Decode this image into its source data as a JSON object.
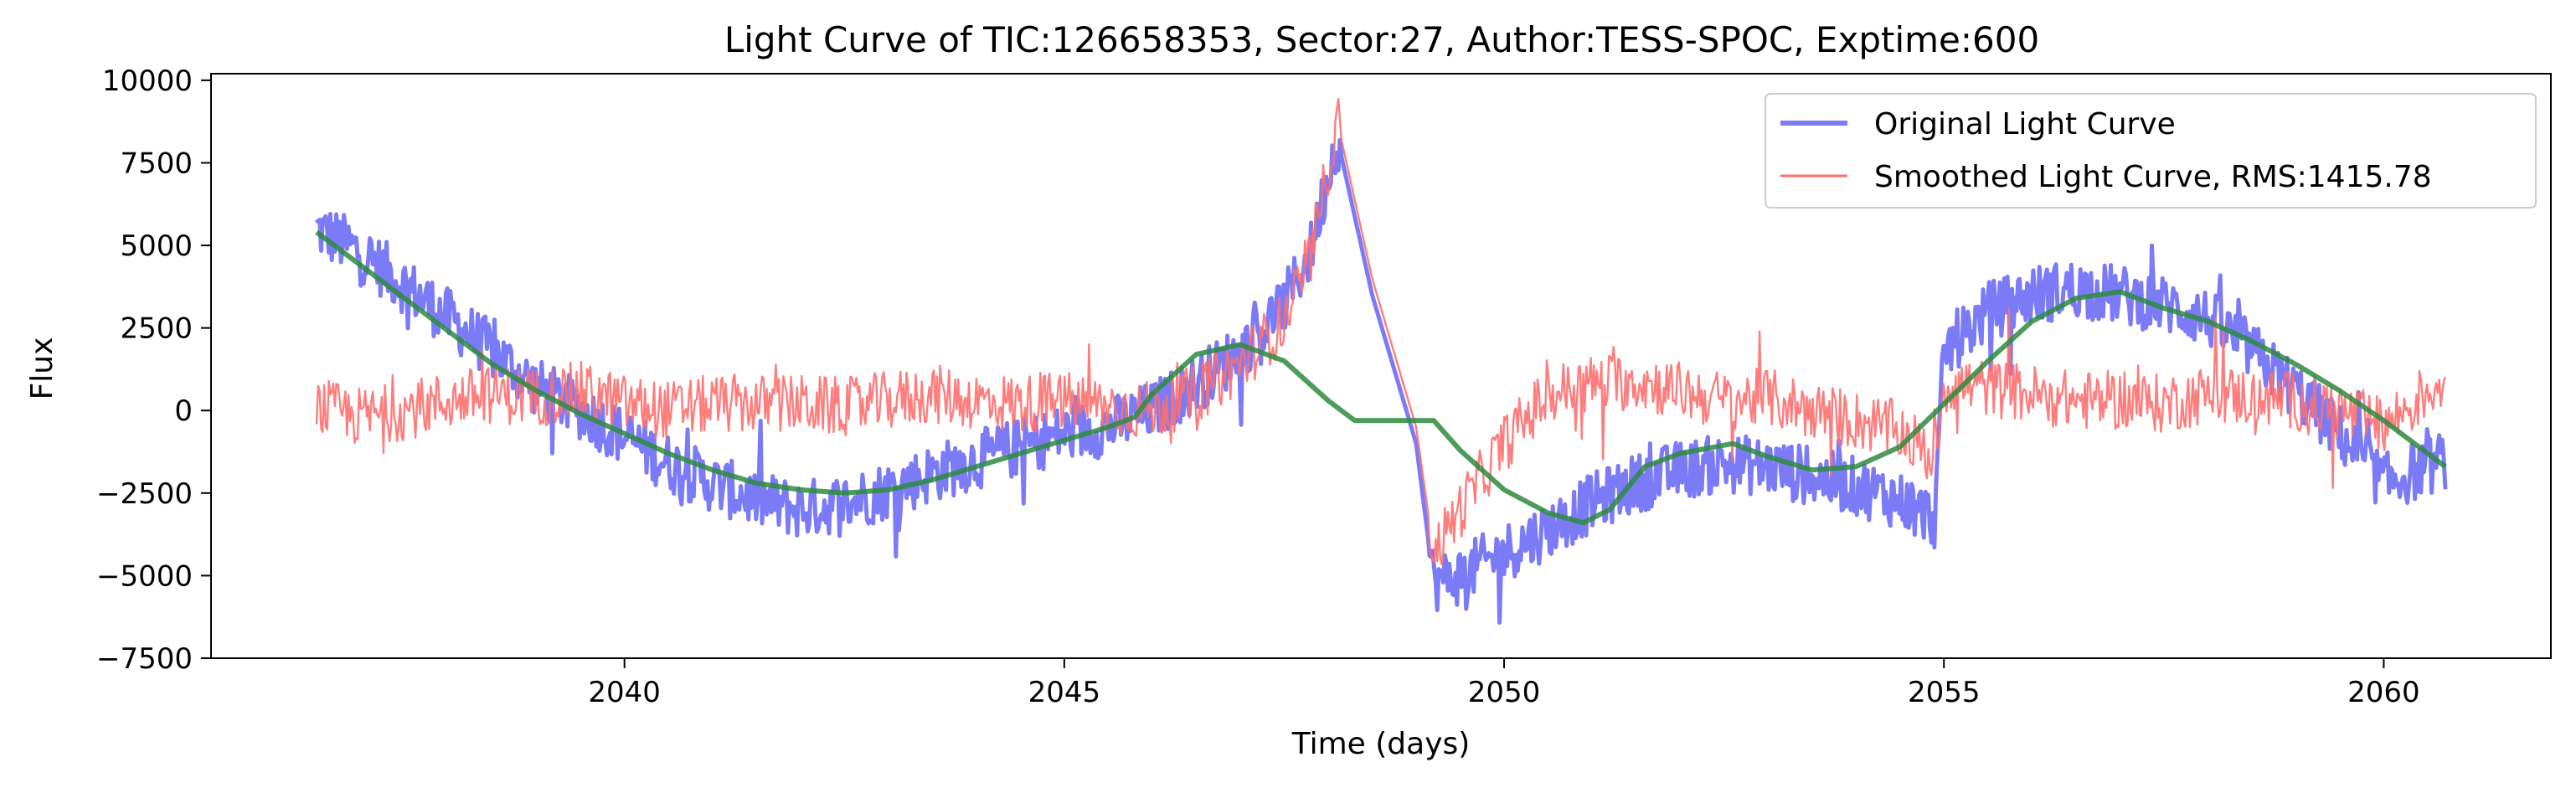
{
  "chart_data": {
    "type": "line",
    "title": "Light Curve of TIC:126658353, Sector:27, Author:TESS-SPOC, Exptime:600",
    "xlabel": "Time (days)",
    "ylabel": "Flux",
    "xlim": [
      2035.3,
      2061.9
    ],
    "ylim": [
      -7500,
      10200
    ],
    "xticks": [
      2040,
      2045,
      2050,
      2055,
      2060
    ],
    "xtick_labels": [
      "2040",
      "2045",
      "2050",
      "2055",
      "2060"
    ],
    "yticks": [
      -7500,
      -5000,
      -2500,
      0,
      2500,
      5000,
      7500,
      10000
    ],
    "ytick_labels": [
      "−7500",
      "−5000",
      "−2500",
      "0",
      "2500",
      "5000",
      "7500",
      "10000"
    ],
    "grid": false,
    "legend_position": "upper right",
    "colors": {
      "original": "#7b7bf7",
      "smoothed": "#ff6f6f",
      "trend": "#2e8b3e"
    },
    "series": [
      {
        "name": "Original Light Curve",
        "style": "thick",
        "x": [
          2036.5,
          2037.0,
          2037.5,
          2038.0,
          2038.5,
          2039.0,
          2039.5,
          2040.0,
          2040.5,
          2041.0,
          2041.5,
          2042.0,
          2042.5,
          2043.0,
          2043.5,
          2044.0,
          2044.5,
          2045.0,
          2045.5,
          2046.0,
          2046.5,
          2047.0,
          2047.5,
          2047.8,
          2048.1,
          2048.5,
          2049.0,
          2049.2,
          2049.5,
          2050.0,
          2050.5,
          2051.0,
          2051.5,
          2052.0,
          2052.5,
          2053.0,
          2053.5,
          2054.0,
          2054.5,
          2054.9,
          2055.0,
          2055.5,
          2056.0,
          2056.5,
          2057.0,
          2057.5,
          2058.0,
          2058.5,
          2059.0,
          2059.5,
          2060.0,
          2060.7
        ],
        "values": [
          5500,
          4800,
          3800,
          2800,
          1800,
          700,
          0,
          -800,
          -1600,
          -2200,
          -2700,
          -3000,
          -2800,
          -2400,
          -1900,
          -1500,
          -1100,
          -700,
          -500,
          0,
          800,
          1800,
          3200,
          4800,
          8300,
          3500,
          -1000,
          -5200,
          -5000,
          -4300,
          -3600,
          -2800,
          -2200,
          -1800,
          -1600,
          -1700,
          -2000,
          -2300,
          -2700,
          -3300,
          1800,
          3000,
          3500,
          3700,
          3500,
          3200,
          2800,
          1800,
          600,
          -700,
          -2200,
          -1500
        ]
      },
      {
        "name": "Smoothed Light Curve, RMS:1415.78",
        "style": "thin",
        "x": [
          2036.5,
          2037.0,
          2037.5,
          2038.0,
          2038.5,
          2039.0,
          2039.5,
          2040.0,
          2040.5,
          2041.0,
          2041.5,
          2042.0,
          2042.5,
          2043.0,
          2043.5,
          2044.0,
          2044.5,
          2045.0,
          2045.5,
          2046.0,
          2046.5,
          2047.0,
          2047.5,
          2047.8,
          2048.1,
          2048.5,
          2049.0,
          2049.2,
          2049.5,
          2050.0,
          2050.5,
          2051.0,
          2051.5,
          2052.0,
          2052.5,
          2053.0,
          2053.5,
          2054.0,
          2054.5,
          2054.9,
          2055.0,
          2055.5,
          2056.0,
          2056.5,
          2057.0,
          2057.5,
          2058.0,
          2058.5,
          2059.0,
          2059.5,
          2060.0,
          2060.7
        ],
        "values": [
          100,
          -200,
          0,
          300,
          500,
          400,
          600,
          200,
          0,
          200,
          200,
          200,
          100,
          300,
          500,
          300,
          200,
          300,
          100,
          0,
          500,
          1400,
          2700,
          4600,
          8800,
          4000,
          -500,
          -4300,
          -3000,
          -1000,
          500,
          800,
          900,
          600,
          300,
          400,
          0,
          -300,
          -600,
          -1500,
          800,
          700,
          500,
          300,
          300,
          200,
          500,
          400,
          300,
          0,
          -500,
          1000
        ]
      },
      {
        "name": "",
        "style": "trend",
        "x": [
          2036.5,
          2037.0,
          2037.5,
          2038.0,
          2038.5,
          2039.0,
          2039.5,
          2040.0,
          2040.5,
          2041.0,
          2041.5,
          2042.0,
          2042.5,
          2043.0,
          2043.5,
          2044.0,
          2044.5,
          2045.0,
          2045.5,
          2045.8,
          2046.0,
          2046.5,
          2047.0,
          2047.5,
          2048.0,
          2048.3,
          2049.2,
          2049.5,
          2050.0,
          2050.5,
          2050.9,
          2051.2,
          2051.6,
          2052.0,
          2052.6,
          2053.0,
          2053.5,
          2054.0,
          2054.5,
          2055.0,
          2055.5,
          2056.0,
          2056.5,
          2057.0,
          2057.5,
          2058.0,
          2058.5,
          2059.0,
          2059.5,
          2060.0,
          2060.7
        ],
        "values": [
          5400,
          4400,
          3400,
          2400,
          1400,
          600,
          -100,
          -700,
          -1300,
          -1800,
          -2200,
          -2400,
          -2500,
          -2400,
          -2100,
          -1700,
          -1300,
          -900,
          -500,
          -200,
          500,
          1700,
          2000,
          1500,
          300,
          -300,
          -300,
          -1200,
          -2400,
          -3100,
          -3400,
          -3000,
          -1700,
          -1300,
          -1000,
          -1400,
          -1800,
          -1700,
          -1100,
          200,
          1500,
          2700,
          3400,
          3600,
          3100,
          2700,
          2100,
          1400,
          600,
          -300,
          -1700
        ]
      }
    ]
  }
}
